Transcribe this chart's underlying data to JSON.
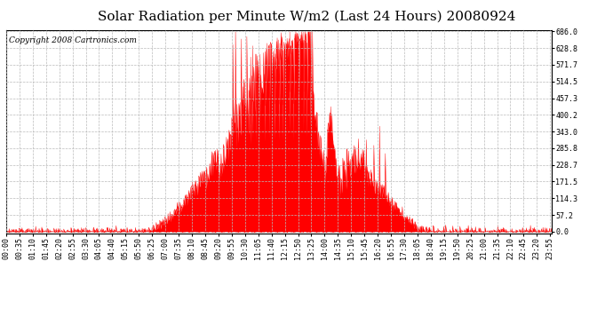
{
  "title": "Solar Radiation per Minute W/m2 (Last 24 Hours) 20080924",
  "copyright": "Copyright 2008 Cartronics.com",
  "y_ticks": [
    0.0,
    57.2,
    114.3,
    171.5,
    228.7,
    285.8,
    343.0,
    400.2,
    457.3,
    514.5,
    571.7,
    628.8,
    686.0
  ],
  "y_max": 686.0,
  "y_min": 0.0,
  "fill_color": "#FF0000",
  "line_color": "#FF0000",
  "dashed_line_color": "#FF0000",
  "grid_color": "#BBBBBB",
  "bg_color": "#FFFFFF",
  "title_fontsize": 11,
  "copyright_fontsize": 6.5,
  "tick_fontsize": 6,
  "x_tick_labels": [
    "00:00",
    "00:35",
    "01:10",
    "01:45",
    "02:20",
    "02:55",
    "03:30",
    "04:05",
    "04:40",
    "05:15",
    "05:50",
    "06:25",
    "07:00",
    "07:35",
    "08:10",
    "08:45",
    "09:20",
    "09:55",
    "10:30",
    "11:05",
    "11:40",
    "12:15",
    "12:50",
    "13:25",
    "14:00",
    "14:35",
    "15:10",
    "15:45",
    "16:20",
    "16:55",
    "17:30",
    "18:05",
    "18:40",
    "19:15",
    "19:50",
    "20:25",
    "21:00",
    "21:35",
    "22:10",
    "22:45",
    "23:20",
    "23:55"
  ],
  "num_minutes": 1440,
  "sunrise_minute": 385,
  "sunset_minute": 1105,
  "solar_peak_minute": 800,
  "solar_max": 686.0
}
